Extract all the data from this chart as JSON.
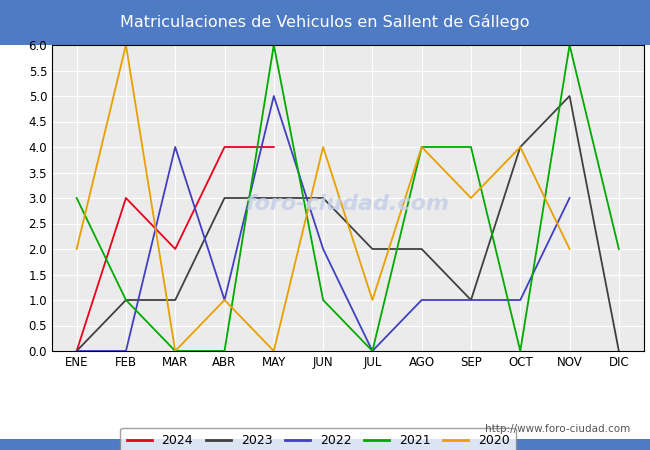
{
  "title": "Matriculaciones de Vehiculos en Sallent de Gállego",
  "title_color": "white",
  "title_bg_color": "#4e7bc4",
  "months": [
    "ENE",
    "FEB",
    "MAR",
    "ABR",
    "MAY",
    "JUN",
    "JUL",
    "AGO",
    "SEP",
    "OCT",
    "NOV",
    "DIC"
  ],
  "ylim": [
    0.0,
    6.0
  ],
  "yticks": [
    0.0,
    0.5,
    1.0,
    1.5,
    2.0,
    2.5,
    3.0,
    3.5,
    4.0,
    4.5,
    5.0,
    5.5,
    6.0
  ],
  "series": {
    "2024": {
      "color": "#e8001c",
      "data": [
        0,
        3,
        2,
        4,
        4,
        null,
        null,
        null,
        null,
        null,
        null,
        null
      ]
    },
    "2023": {
      "color": "#404040",
      "data": [
        0,
        1,
        1,
        3,
        3,
        3,
        2,
        2,
        1,
        4,
        5,
        0
      ]
    },
    "2022": {
      "color": "#4040c0",
      "data": [
        0,
        0,
        4,
        1,
        5,
        2,
        0,
        1,
        1,
        1,
        3,
        null
      ]
    },
    "2021": {
      "color": "#00aa00",
      "data": [
        3,
        1,
        0,
        0,
        6,
        1,
        0,
        4,
        4,
        0,
        6,
        2
      ]
    },
    "2020": {
      "color": "#e8a000",
      "data": [
        2,
        6,
        0,
        1,
        0,
        4,
        1,
        4,
        3,
        4,
        2,
        null
      ]
    }
  },
  "watermark": "foro-ciudad.com",
  "url": "http://www.foro-ciudad.com",
  "bg_plot": "#ebebeb",
  "bg_figure": "#ffffff",
  "bg_bottom": "#dde5f5",
  "grid_color": "#ffffff"
}
